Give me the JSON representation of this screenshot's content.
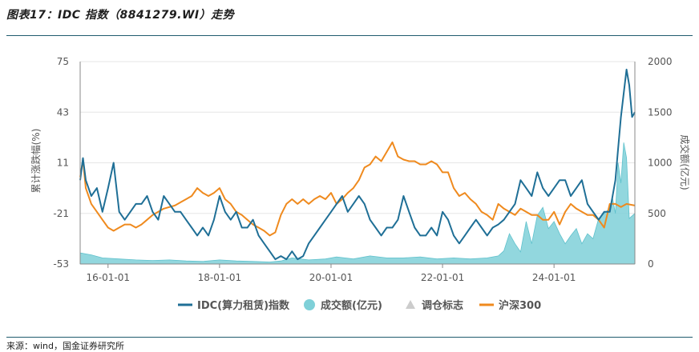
{
  "header": {
    "title": "图表17：IDC 指数（8841279.WI）走势"
  },
  "footer": {
    "source": "来源：wind，国金证券研究所"
  },
  "colors": {
    "idc": "#1f6f96",
    "volume": "#7fd0d8",
    "hs300": "#ef8a1e",
    "marker": "#cccccc",
    "rule": "#1f5b6e"
  },
  "chart_data": {
    "type": "line",
    "title": "IDC 指数（8841279.WI）走势",
    "ylabel": "累计涨跌幅(%)",
    "y2label": "成交额(亿元)",
    "ylim": [
      -53,
      75
    ],
    "y2lim": [
      0,
      2000
    ],
    "yticks": [
      "75",
      "43",
      "11",
      "-21",
      "-53"
    ],
    "y2ticks": [
      "2000",
      "1500",
      "1000",
      "500",
      "0"
    ],
    "xticks": [
      "16-01-01",
      "18-01-01",
      "20-01-01",
      "22-01-01",
      "24-01-01"
    ],
    "x_range": [
      "2015-07",
      "2025-06"
    ],
    "series": [
      {
        "name": "IDC(算力租赁)指数",
        "axis": "left",
        "x": [
          2015.5,
          2015.55,
          2015.6,
          2015.7,
          2015.8,
          2015.9,
          2016.0,
          2016.1,
          2016.2,
          2016.3,
          2016.4,
          2016.5,
          2016.6,
          2016.7,
          2016.8,
          2016.9,
          2017.0,
          2017.1,
          2017.2,
          2017.3,
          2017.4,
          2017.5,
          2017.6,
          2017.7,
          2017.8,
          2017.9,
          2018.0,
          2018.1,
          2018.2,
          2018.3,
          2018.4,
          2018.5,
          2018.6,
          2018.7,
          2018.8,
          2018.9,
          2019.0,
          2019.1,
          2019.2,
          2019.3,
          2019.4,
          2019.5,
          2019.6,
          2019.7,
          2019.8,
          2019.9,
          2020.0,
          2020.1,
          2020.2,
          2020.3,
          2020.4,
          2020.5,
          2020.6,
          2020.7,
          2020.8,
          2020.9,
          2021.0,
          2021.1,
          2021.2,
          2021.3,
          2021.4,
          2021.5,
          2021.6,
          2021.7,
          2021.8,
          2021.9,
          2022.0,
          2022.1,
          2022.2,
          2022.3,
          2022.4,
          2022.5,
          2022.6,
          2022.7,
          2022.8,
          2022.9,
          2023.0,
          2023.1,
          2023.2,
          2023.3,
          2023.4,
          2023.5,
          2023.6,
          2023.7,
          2023.8,
          2023.9,
          2024.0,
          2024.1,
          2024.2,
          2024.3,
          2024.4,
          2024.5,
          2024.6,
          2024.7,
          2024.8,
          2024.9,
          2025.0,
          2025.1,
          2025.15,
          2025.2,
          2025.25,
          2025.3,
          2025.35,
          2025.4,
          2025.45
        ],
        "values": [
          0,
          14,
          0,
          -10,
          -5,
          -20,
          -5,
          11,
          -20,
          -25,
          -20,
          -15,
          -15,
          -10,
          -20,
          -25,
          -10,
          -15,
          -20,
          -20,
          -25,
          -30,
          -35,
          -30,
          -35,
          -25,
          -10,
          -20,
          -25,
          -20,
          -30,
          -30,
          -25,
          -35,
          -40,
          -45,
          -50,
          -48,
          -50,
          -45,
          -50,
          -48,
          -40,
          -35,
          -30,
          -25,
          -20,
          -15,
          -10,
          -20,
          -15,
          -10,
          -15,
          -25,
          -30,
          -35,
          -30,
          -30,
          -25,
          -10,
          -20,
          -30,
          -35,
          -35,
          -30,
          -35,
          -20,
          -25,
          -35,
          -40,
          -35,
          -30,
          -25,
          -30,
          -35,
          -30,
          -28,
          -25,
          -20,
          -15,
          0,
          -5,
          -10,
          5,
          -5,
          -10,
          -5,
          0,
          0,
          -10,
          -5,
          0,
          -15,
          -20,
          -25,
          -20,
          -20,
          0,
          20,
          40,
          55,
          70,
          60,
          40,
          43
        ]
      },
      {
        "name": "沪深300",
        "axis": "left",
        "x": [
          2015.5,
          2015.55,
          2015.6,
          2015.7,
          2015.8,
          2015.9,
          2016.0,
          2016.1,
          2016.2,
          2016.3,
          2016.4,
          2016.5,
          2016.6,
          2016.7,
          2016.8,
          2016.9,
          2017.0,
          2017.1,
          2017.2,
          2017.3,
          2017.4,
          2017.5,
          2017.6,
          2017.7,
          2017.8,
          2017.9,
          2018.0,
          2018.1,
          2018.2,
          2018.3,
          2018.4,
          2018.5,
          2018.6,
          2018.7,
          2018.8,
          2018.9,
          2019.0,
          2019.1,
          2019.2,
          2019.3,
          2019.4,
          2019.5,
          2019.6,
          2019.7,
          2019.8,
          2019.9,
          2020.0,
          2020.1,
          2020.2,
          2020.3,
          2020.4,
          2020.5,
          2020.6,
          2020.7,
          2020.8,
          2020.9,
          2021.0,
          2021.1,
          2021.2,
          2021.3,
          2021.4,
          2021.5,
          2021.6,
          2021.7,
          2021.8,
          2021.9,
          2022.0,
          2022.1,
          2022.2,
          2022.3,
          2022.4,
          2022.5,
          2022.6,
          2022.7,
          2022.8,
          2022.9,
          2023.0,
          2023.1,
          2023.2,
          2023.3,
          2023.4,
          2023.5,
          2023.6,
          2023.7,
          2023.8,
          2023.9,
          2024.0,
          2024.1,
          2024.2,
          2024.3,
          2024.4,
          2024.5,
          2024.6,
          2024.7,
          2024.8,
          2024.9,
          2025.0,
          2025.1,
          2025.2,
          2025.3,
          2025.45
        ],
        "values": [
          2,
          13,
          -5,
          -15,
          -20,
          -25,
          -30,
          -32,
          -30,
          -28,
          -28,
          -30,
          -28,
          -25,
          -22,
          -20,
          -18,
          -17,
          -16,
          -14,
          -12,
          -10,
          -5,
          -8,
          -10,
          -8,
          -5,
          -12,
          -15,
          -20,
          -22,
          -25,
          -28,
          -30,
          -32,
          -35,
          -33,
          -22,
          -15,
          -12,
          -15,
          -12,
          -15,
          -12,
          -10,
          -12,
          -8,
          -15,
          -12,
          -8,
          -5,
          0,
          8,
          10,
          15,
          12,
          18,
          24,
          15,
          13,
          12,
          12,
          10,
          10,
          12,
          10,
          5,
          5,
          -5,
          -10,
          -8,
          -12,
          -15,
          -20,
          -22,
          -25,
          -15,
          -18,
          -20,
          -22,
          -18,
          -20,
          -22,
          -22,
          -25,
          -25,
          -20,
          -28,
          -20,
          -15,
          -18,
          -20,
          -22,
          -22,
          -25,
          -30,
          -15,
          -15,
          -17,
          -15,
          -16
        ]
      },
      {
        "name": "成交额(亿元)",
        "axis": "right",
        "type": "area",
        "x": [
          2015.5,
          2015.7,
          2015.9,
          2016.2,
          2016.5,
          2016.8,
          2017.1,
          2017.4,
          2017.7,
          2018.0,
          2018.3,
          2018.6,
          2018.9,
          2019.1,
          2019.3,
          2019.6,
          2019.9,
          2020.1,
          2020.4,
          2020.7,
          2021.0,
          2021.3,
          2021.6,
          2021.9,
          2022.2,
          2022.5,
          2022.8,
          2023.0,
          2023.1,
          2023.2,
          2023.3,
          2023.4,
          2023.5,
          2023.6,
          2023.7,
          2023.8,
          2023.9,
          2024.0,
          2024.1,
          2024.2,
          2024.3,
          2024.4,
          2024.5,
          2024.6,
          2024.7,
          2024.8,
          2024.9,
          2025.0,
          2025.05,
          2025.1,
          2025.15,
          2025.2,
          2025.25,
          2025.3,
          2025.35,
          2025.45
        ],
        "values": [
          110,
          90,
          60,
          50,
          40,
          35,
          40,
          30,
          25,
          40,
          30,
          25,
          20,
          30,
          60,
          40,
          50,
          70,
          50,
          80,
          60,
          60,
          70,
          50,
          60,
          50,
          60,
          80,
          130,
          300,
          200,
          120,
          420,
          200,
          480,
          560,
          350,
          420,
          300,
          200,
          280,
          350,
          200,
          300,
          250,
          450,
          500,
          550,
          650,
          500,
          1000,
          800,
          1200,
          1050,
          450,
          500
        ]
      }
    ],
    "legend": [
      "IDC(算力租赁)指数",
      "成交额(亿元)",
      "调仓标志",
      "沪深300"
    ],
    "legend_position": "bottom"
  }
}
